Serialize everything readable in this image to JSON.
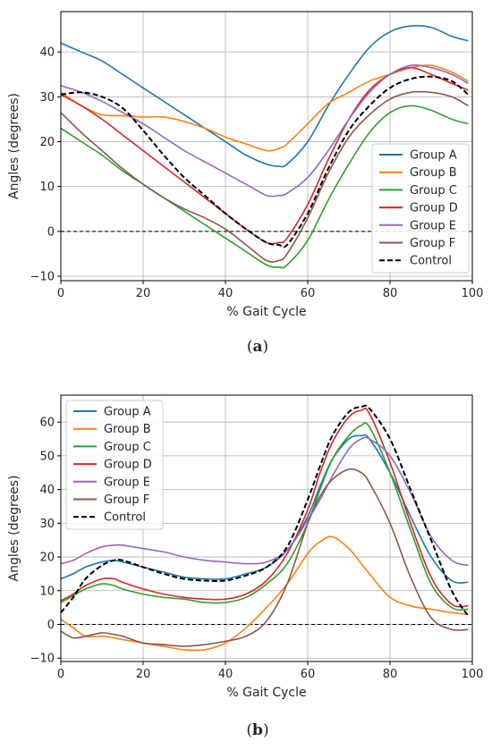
{
  "chart_data": [
    {
      "type": "line",
      "caption": "(a)",
      "xlabel": "% Gait Cycle",
      "ylabel": "Angles (degrees)",
      "xlim": [
        0,
        100
      ],
      "ylim": [
        -11,
        49
      ],
      "xticks": [
        0,
        20,
        40,
        60,
        80,
        100
      ],
      "yticks": [
        -10,
        0,
        10,
        20,
        30,
        40
      ],
      "grid": true,
      "legend_position": "lower-right",
      "zero_line": true,
      "x": [
        0,
        5,
        10,
        15,
        20,
        25,
        30,
        35,
        40,
        45,
        50,
        53,
        55,
        60,
        65,
        70,
        75,
        80,
        85,
        90,
        95,
        99
      ],
      "series": [
        {
          "name": "Group A",
          "color": "#1f77b4",
          "dash": false,
          "values": [
            42,
            40,
            38,
            35,
            32,
            29,
            26,
            23,
            20,
            17,
            15,
            14.5,
            15,
            20,
            28,
            35,
            41,
            44.5,
            45.8,
            45.5,
            43.5,
            42.5
          ]
        },
        {
          "name": "Group B",
          "color": "#ff7f0e",
          "dash": false,
          "values": [
            31,
            28,
            26,
            25.8,
            25.5,
            25.5,
            24.5,
            23,
            21,
            19.5,
            18,
            18.5,
            19.5,
            24,
            28.5,
            31,
            33.5,
            35,
            36.5,
            37,
            35.5,
            33.5
          ]
        },
        {
          "name": "Group C",
          "color": "#2ca02c",
          "dash": false,
          "values": [
            23,
            20,
            17,
            13.5,
            10.5,
            7.5,
            4.5,
            1.5,
            -1.5,
            -4.5,
            -7.5,
            -8,
            -7.5,
            -2,
            7,
            15,
            22,
            26.5,
            28,
            27,
            25,
            24
          ]
        },
        {
          "name": "Group D",
          "color": "#d62728",
          "dash": false,
          "values": [
            30.5,
            28,
            25,
            21.5,
            18,
            14.5,
            11,
            7.5,
            4,
            0.5,
            -2.5,
            -2.5,
            -1.5,
            6,
            16,
            25,
            31.5,
            35,
            36.5,
            35,
            33,
            31.5
          ]
        },
        {
          "name": "Group E",
          "color": "#9467bd",
          "dash": false,
          "values": [
            32.5,
            31,
            29,
            26.5,
            24,
            21,
            18,
            15.5,
            13,
            10.5,
            8,
            8,
            8.5,
            12,
            18,
            25,
            31,
            35,
            37,
            36.5,
            35,
            33
          ]
        },
        {
          "name": "Group F",
          "color": "#8c564b",
          "dash": false,
          "values": [
            26.5,
            22,
            18,
            14,
            10.5,
            7.5,
            5,
            3,
            0.5,
            -3,
            -6.5,
            -6.5,
            -5,
            3,
            13,
            21,
            26,
            29.5,
            31,
            31,
            30,
            28
          ]
        },
        {
          "name": "Control",
          "color": "#000000",
          "dash": true,
          "values": [
            30.5,
            31,
            30,
            27.5,
            22.5,
            17,
            12,
            8,
            4,
            0.5,
            -2.5,
            -3,
            -3,
            4,
            14,
            22.5,
            28,
            32,
            34,
            34.5,
            33.5,
            30.5
          ]
        }
      ]
    },
    {
      "type": "line",
      "caption": "(b)",
      "xlabel": "% Gait Cycle",
      "ylabel": "Angles (degrees)",
      "xlim": [
        0,
        100
      ],
      "ylim": [
        -11,
        68
      ],
      "xticks": [
        0,
        20,
        40,
        60,
        80,
        100
      ],
      "yticks": [
        -10,
        0,
        10,
        20,
        30,
        40,
        50,
        60
      ],
      "grid": true,
      "legend_position": "upper-left",
      "zero_line": true,
      "x": [
        0,
        3,
        6,
        10,
        13,
        15,
        20,
        25,
        30,
        35,
        40,
        45,
        50,
        55,
        60,
        63,
        66,
        70,
        73,
        75,
        80,
        85,
        90,
        95,
        99
      ],
      "series": [
        {
          "name": "Group A",
          "color": "#1f77b4",
          "dash": false,
          "values": [
            13.5,
            15,
            17,
            18.5,
            19,
            18.5,
            17,
            15.5,
            14,
            13.5,
            13.5,
            15,
            17,
            22,
            32,
            41,
            49,
            55,
            56,
            55,
            45,
            32,
            20,
            13,
            12.5
          ]
        },
        {
          "name": "Group B",
          "color": "#ff7f0e",
          "dash": false,
          "values": [
            1.5,
            -1,
            -3.5,
            -3.5,
            -4,
            -4.5,
            -5.5,
            -6.5,
            -7.5,
            -7.5,
            -5.5,
            -1,
            5,
            12,
            21,
            24.5,
            26,
            22.5,
            18,
            15,
            8,
            5.5,
            4.5,
            3.5,
            3
          ]
        },
        {
          "name": "Group C",
          "color": "#2ca02c",
          "dash": false,
          "values": [
            6.5,
            8.5,
            10.5,
            12,
            11.5,
            10.5,
            9,
            8,
            7.5,
            6.5,
            6.5,
            8,
            12,
            18,
            30,
            40,
            49,
            56,
            59,
            58.5,
            45,
            28,
            12,
            5,
            4.5
          ]
        },
        {
          "name": "Group D",
          "color": "#d62728",
          "dash": false,
          "values": [
            7,
            9,
            11.5,
            13.5,
            13.5,
            12.5,
            10.5,
            9,
            8,
            7.5,
            7.5,
            9,
            13,
            21,
            34,
            45,
            54,
            61.5,
            63.5,
            62.5,
            48,
            30,
            14,
            6,
            5.5
          ]
        },
        {
          "name": "Group E",
          "color": "#9467bd",
          "dash": false,
          "values": [
            18,
            19,
            21,
            23,
            23.5,
            23.5,
            22.5,
            21.5,
            20,
            19,
            18.5,
            18,
            18.5,
            22,
            31,
            37,
            44,
            52,
            55,
            55,
            50,
            39,
            26,
            19,
            17.5
          ]
        },
        {
          "name": "Group F",
          "color": "#8c564b",
          "dash": false,
          "values": [
            -2,
            -4,
            -3.5,
            -2.5,
            -3,
            -3.5,
            -5.5,
            -6,
            -6.5,
            -6,
            -5,
            -3.5,
            1,
            12,
            30,
            38,
            43,
            46,
            45,
            42,
            30,
            14,
            2,
            -1.5,
            -1.5
          ]
        },
        {
          "name": "Control",
          "color": "#000000",
          "dash": true,
          "values": [
            3.5,
            8,
            13.5,
            17.5,
            19,
            19,
            17,
            15,
            13.5,
            13,
            13,
            14.5,
            17,
            23,
            37,
            47,
            56,
            63,
            64.5,
            64,
            55,
            40,
            25,
            10,
            2.5
          ]
        }
      ]
    }
  ]
}
